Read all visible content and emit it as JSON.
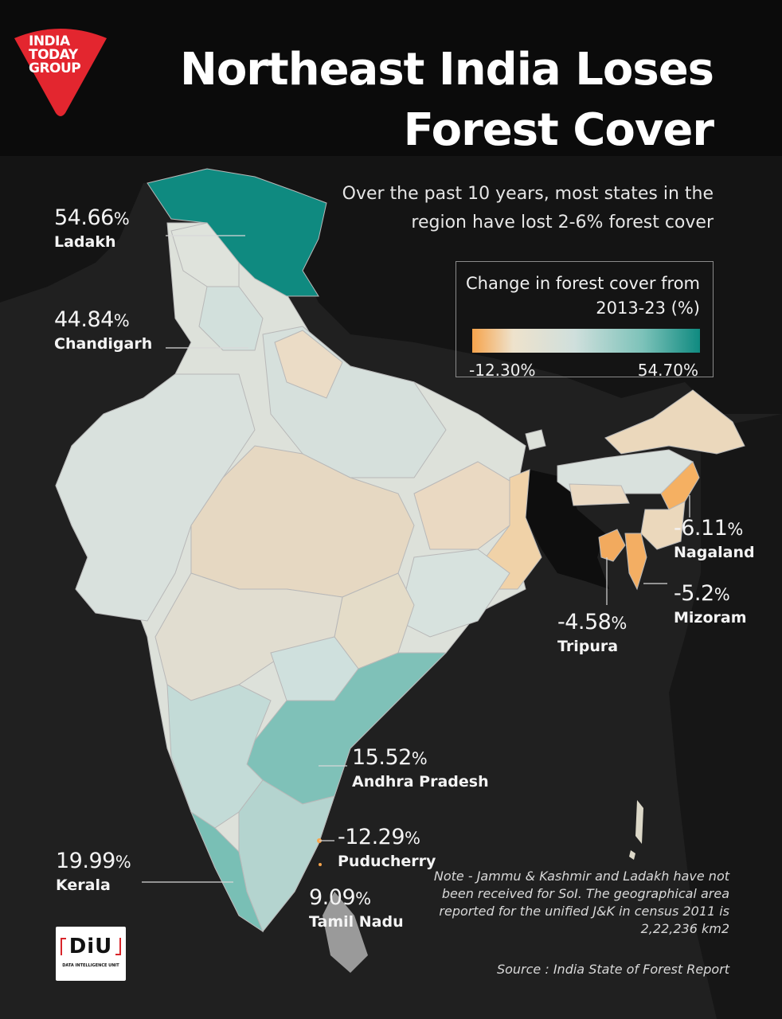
{
  "brand": {
    "logo_lines": [
      "INDIA",
      "TODAY",
      "GROUP"
    ],
    "logo_color": "#e3262f"
  },
  "title": "Northeast India Loses Forest Cover",
  "subtitle": "Over the past 10 years, most states in the region have lost 2-6% forest cover",
  "legend": {
    "title": "Change in forest cover from 2013-23 (%)",
    "min_label": "-12.30%",
    "max_label": "54.70%",
    "colors": [
      "#f6a44c",
      "#eee2cc",
      "#cfdfdc",
      "#7cc2b9",
      "#0f8a80"
    ]
  },
  "callouts": [
    {
      "value": "54.66",
      "unit": "%",
      "name": "Ladakh"
    },
    {
      "value": "44.84",
      "unit": "%",
      "name": "Chandigarh"
    },
    {
      "value": "-6.11",
      "unit": "%",
      "name": "Nagaland"
    },
    {
      "value": "-5.2",
      "unit": "%",
      "name": "Mizoram"
    },
    {
      "value": "-4.58",
      "unit": "%",
      "name": "Tripura"
    },
    {
      "value": "15.52",
      "unit": "%",
      "name": "Andhra Pradesh"
    },
    {
      "value": "-12.29",
      "unit": "%",
      "name": "Puducherry"
    },
    {
      "value": "19.99",
      "unit": "%",
      "name": "Kerala"
    },
    {
      "value": "9.09",
      "unit": "%",
      "name": "Tamil Nadu"
    }
  ],
  "note": "Note - Jammu & Kashmir and Ladakh have not been received for SoI. The geographical area reported for the unified J&K in census 2011 is 2,22,236 km2",
  "source": "Source : India State of Forest Report",
  "diu": {
    "text": "DiU",
    "sub": "DATA INTELLIGENCE UNIT"
  }
}
